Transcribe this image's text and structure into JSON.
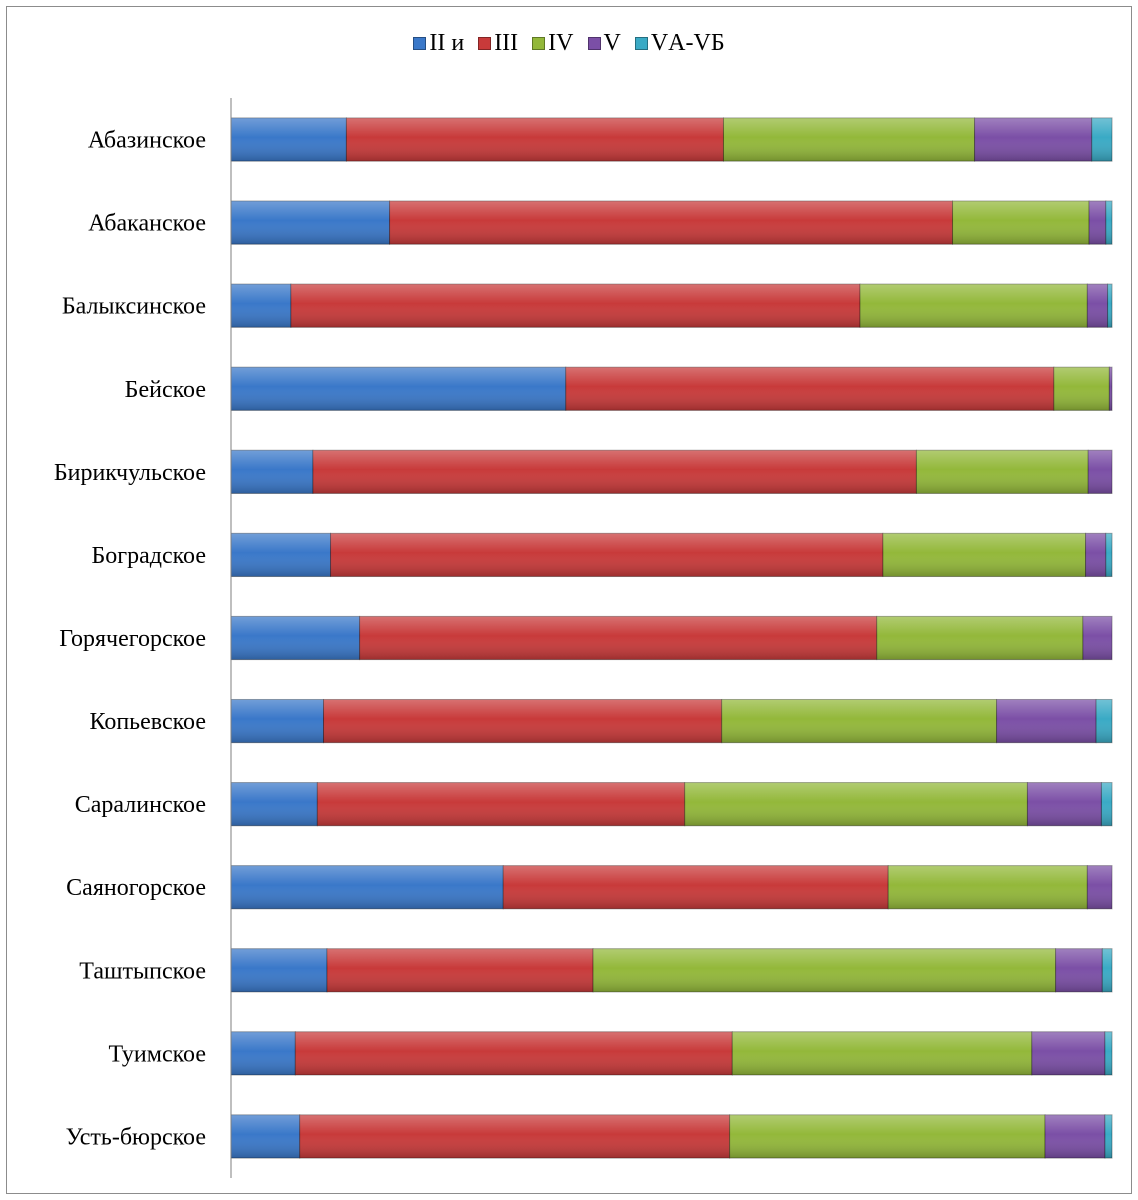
{
  "chart_data": {
    "type": "bar",
    "orientation": "horizontal",
    "stacked": "percent",
    "title": "",
    "xlabel": "",
    "ylabel": "",
    "legend_position": "top",
    "grid": false,
    "categories": [
      "Абазинское",
      "Абаканское",
      "Балыксинское",
      "Бейское",
      "Бирикчульское",
      "Боградское",
      "Горячегорское",
      "Копьевское",
      "Саралинское",
      "Саяногорское",
      "Таштыпское",
      "Туимское",
      "Усть-бюрское"
    ],
    "series": [
      {
        "name": "II и",
        "color": "#3a78c9",
        "values": [
          13.1,
          18.0,
          6.8,
          38.0,
          9.3,
          11.3,
          14.6,
          10.5,
          9.8,
          30.9,
          10.9,
          7.3,
          7.8
        ]
      },
      {
        "name": "III",
        "color": "#c83a3a",
        "values": [
          42.8,
          63.9,
          64.6,
          55.4,
          68.5,
          62.7,
          58.7,
          45.2,
          41.7,
          43.7,
          30.2,
          49.6,
          48.8
        ]
      },
      {
        "name": "IV",
        "color": "#93b83a",
        "values": [
          28.5,
          15.5,
          25.8,
          6.3,
          19.5,
          23.0,
          23.4,
          31.2,
          38.9,
          22.6,
          52.5,
          34.0,
          35.8
        ]
      },
      {
        "name": "V",
        "color": "#7b4fa6",
        "values": [
          13.3,
          1.9,
          2.3,
          0.3,
          2.7,
          2.3,
          3.3,
          11.3,
          8.4,
          2.8,
          5.3,
          8.3,
          6.8
        ]
      },
      {
        "name": "VА-VБ",
        "color": "#3aaac5",
        "values": [
          2.3,
          0.7,
          0.5,
          0.0,
          0.0,
          0.7,
          0.0,
          1.8,
          1.2,
          0.0,
          1.1,
          0.8,
          0.8
        ]
      }
    ]
  }
}
